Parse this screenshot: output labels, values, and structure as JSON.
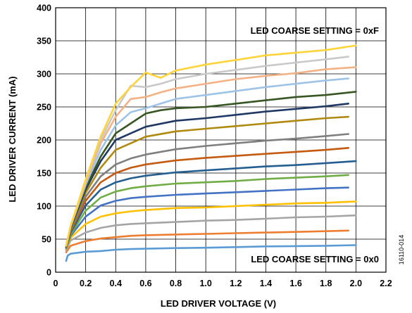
{
  "chart_data": {
    "type": "line",
    "title": "",
    "xlabel": "LED DRIVER VOLTAGE (V)",
    "ylabel": "LED DRIVER CURRENT (mA)",
    "xlim": [
      0,
      2.2
    ],
    "ylim": [
      0,
      400
    ],
    "xticks": [
      "0",
      "0.2",
      "0.4",
      "0.6",
      "0.8",
      "1.0",
      "1.2",
      "1.4",
      "1.6",
      "1.8",
      "2.0",
      "2.2"
    ],
    "yticks": [
      "0",
      "50",
      "100",
      "150",
      "200",
      "250",
      "300",
      "350",
      "400"
    ],
    "grid": true,
    "annotations": [
      "LED COARSE SETTING = 0xF",
      "LED COARSE SETTING = 0x0"
    ],
    "figure_id": "16110-014",
    "series": [
      {
        "color": "#5B9BD5",
        "x": [
          0.07,
          0.08,
          0.1,
          0.2,
          0.3,
          0.4,
          0.5,
          0.6,
          0.8,
          1.0,
          1.2,
          1.4,
          1.6,
          1.8,
          2.0
        ],
        "y": [
          17,
          25,
          28,
          31,
          32,
          34,
          35,
          35.5,
          36.5,
          37,
          38,
          39,
          39.5,
          40,
          41
        ]
      },
      {
        "color": "#ED7D31",
        "x": [
          0.07,
          0.1,
          0.2,
          0.3,
          0.4,
          0.5,
          0.6,
          0.8,
          1.0,
          1.2,
          1.4,
          1.6,
          1.8,
          1.95
        ],
        "y": [
          30,
          40,
          47,
          51,
          53,
          55,
          56,
          57,
          58,
          59,
          60,
          61,
          62,
          63
        ]
      },
      {
        "color": "#A5A5A5",
        "x": [
          0.07,
          0.1,
          0.2,
          0.3,
          0.4,
          0.5,
          0.6,
          0.8,
          1.0,
          1.2,
          1.4,
          1.6,
          1.8,
          2.0
        ],
        "y": [
          33,
          48,
          60,
          67,
          71,
          73,
          74,
          76,
          78,
          79,
          81,
          83,
          84,
          86
        ]
      },
      {
        "color": "#FFC000",
        "x": [
          0.07,
          0.1,
          0.2,
          0.3,
          0.4,
          0.5,
          0.6,
          0.8,
          1.0,
          1.2,
          1.4,
          1.6,
          1.8,
          2.0
        ],
        "y": [
          35,
          52,
          73,
          84,
          89,
          92,
          94,
          97,
          98,
          100,
          102,
          104,
          105,
          107
        ]
      },
      {
        "color": "#4472C4",
        "x": [
          0.07,
          0.1,
          0.2,
          0.3,
          0.4,
          0.5,
          0.6,
          0.8,
          1.0,
          1.2,
          1.4,
          1.6,
          1.8,
          1.95
        ],
        "y": [
          36,
          55,
          84,
          101,
          108,
          112,
          114,
          117,
          119,
          121,
          123,
          125,
          127,
          128
        ]
      },
      {
        "color": "#70AD47",
        "x": [
          0.07,
          0.1,
          0.2,
          0.3,
          0.4,
          0.5,
          0.6,
          0.8,
          1.0,
          1.2,
          1.4,
          1.6,
          1.8,
          1.95
        ],
        "y": [
          37,
          57,
          93,
          113,
          122,
          127,
          130,
          134,
          136,
          138,
          141,
          143,
          145,
          147
        ]
      },
      {
        "color": "#255E91",
        "x": [
          0.07,
          0.1,
          0.2,
          0.3,
          0.4,
          0.5,
          0.6,
          0.8,
          1.0,
          1.2,
          1.4,
          1.6,
          1.8,
          2.0
        ],
        "y": [
          38,
          60,
          101,
          125,
          136,
          142,
          146,
          151,
          154,
          157,
          160,
          162,
          165,
          168
        ]
      },
      {
        "color": "#C55A11",
        "x": [
          0.07,
          0.1,
          0.2,
          0.3,
          0.4,
          0.5,
          0.6,
          0.8,
          1.0,
          1.2,
          1.4,
          1.6,
          1.8,
          1.95
        ],
        "y": [
          38,
          62,
          108,
          136,
          150,
          158,
          163,
          169,
          173,
          176,
          179,
          182,
          185,
          188
        ]
      },
      {
        "color": "#7F7F7F",
        "x": [
          0.07,
          0.1,
          0.2,
          0.3,
          0.4,
          0.5,
          0.6,
          0.8,
          1.0,
          1.2,
          1.4,
          1.6,
          1.8,
          1.95
        ],
        "y": [
          39,
          64,
          114,
          145,
          163,
          172,
          178,
          186,
          191,
          195,
          199,
          202,
          206,
          209
        ]
      },
      {
        "color": "#B08A10",
        "x": [
          0.07,
          0.1,
          0.2,
          0.3,
          0.4,
          0.5,
          0.6,
          0.8,
          1.0,
          1.2,
          1.4,
          1.6,
          1.8,
          1.95
        ],
        "y": [
          39,
          66,
          120,
          158,
          185,
          195,
          205,
          213,
          217,
          221,
          225,
          229,
          233,
          235
        ]
      },
      {
        "color": "#203864",
        "x": [
          0.07,
          0.1,
          0.2,
          0.3,
          0.4,
          0.5,
          0.6,
          0.8,
          1.0,
          1.2,
          1.4,
          1.6,
          1.8,
          1.95
        ],
        "y": [
          39,
          67,
          125,
          168,
          200,
          210,
          220,
          229,
          233,
          238,
          243,
          247,
          251,
          255
        ]
      },
      {
        "color": "#375623",
        "x": [
          0.07,
          0.1,
          0.2,
          0.3,
          0.4,
          0.5,
          0.6,
          0.7,
          0.8,
          1.0,
          1.2,
          1.4,
          1.6,
          1.8,
          2.0
        ],
        "y": [
          40,
          68,
          128,
          175,
          210,
          225,
          240,
          245,
          248,
          250,
          255,
          260,
          265,
          268,
          273
        ]
      },
      {
        "color": "#9DC3E6",
        "x": [
          0.07,
          0.1,
          0.2,
          0.3,
          0.4,
          0.5,
          0.6,
          0.7,
          0.8,
          1.0,
          1.2,
          1.4,
          1.6,
          1.8,
          1.95
        ],
        "y": [
          40,
          69,
          132,
          185,
          222,
          242,
          248,
          255,
          262,
          268,
          274,
          280,
          285,
          290,
          293
        ]
      },
      {
        "color": "#F4B183",
        "x": [
          0.07,
          0.1,
          0.2,
          0.3,
          0.4,
          0.5,
          0.6,
          0.7,
          0.8,
          1.0,
          1.2,
          1.4,
          1.6,
          1.8,
          2.0
        ],
        "y": [
          40,
          70,
          135,
          195,
          235,
          262,
          265,
          272,
          278,
          285,
          292,
          297,
          301,
          307,
          310
        ]
      },
      {
        "color": "#C9C9C9",
        "x": [
          0.07,
          0.1,
          0.2,
          0.3,
          0.4,
          0.5,
          0.6,
          0.7,
          0.8,
          1.0,
          1.2,
          1.4,
          1.6,
          1.8,
          1.95
        ],
        "y": [
          40,
          70,
          138,
          200,
          245,
          282,
          280,
          285,
          292,
          300,
          306,
          312,
          317,
          322,
          326
        ]
      },
      {
        "color": "#FFD43B",
        "x": [
          0.07,
          0.1,
          0.2,
          0.3,
          0.4,
          0.5,
          0.6,
          0.7,
          0.8,
          1.0,
          1.2,
          1.4,
          1.6,
          1.8,
          2.0
        ],
        "y": [
          40,
          70,
          140,
          205,
          255,
          280,
          302,
          294,
          305,
          314,
          321,
          328,
          332,
          336,
          343
        ]
      }
    ]
  }
}
